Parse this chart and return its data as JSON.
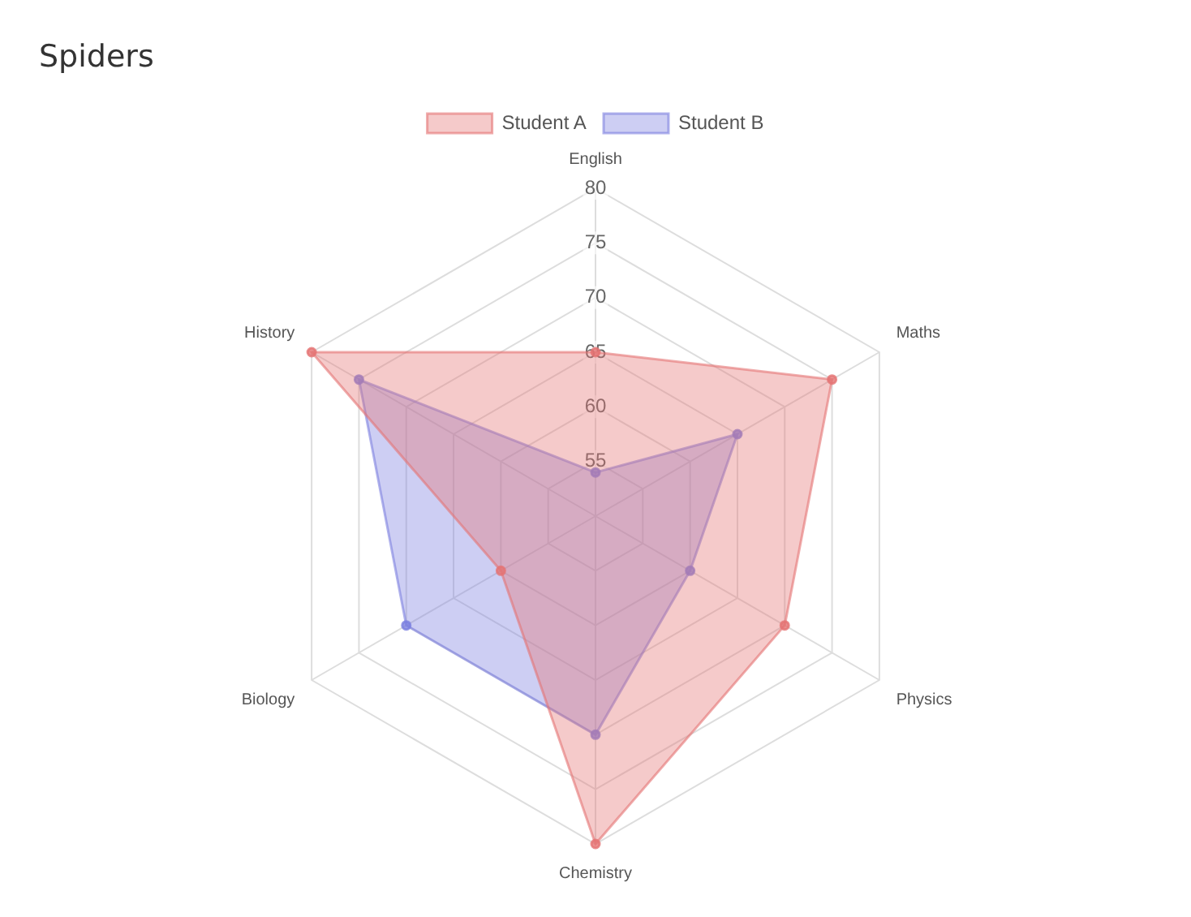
{
  "chart_data": {
    "type": "radar",
    "title": "Spiders",
    "categories": [
      "English",
      "Maths",
      "Physics",
      "Chemistry",
      "Biology",
      "History"
    ],
    "series": [
      {
        "name": "Student A",
        "color": "#e57373",
        "values": [
          65,
          75,
          70,
          80,
          60,
          80
        ]
      },
      {
        "name": "Student B",
        "color": "#7b7fe0",
        "values": [
          54,
          65,
          60,
          70,
          70,
          75
        ]
      }
    ],
    "ylim": [
      50,
      80
    ],
    "yticks": [
      55,
      60,
      65,
      70,
      75,
      80
    ],
    "grid": true,
    "legend": "top",
    "marker": "circle"
  }
}
